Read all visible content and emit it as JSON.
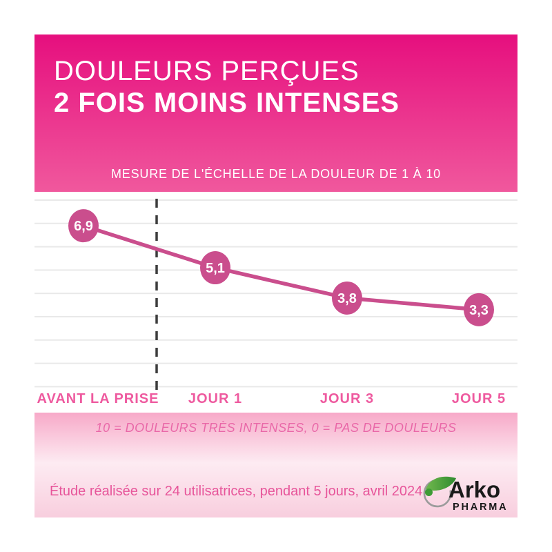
{
  "header": {
    "title_line1": "DOULEURS PERÇUES",
    "title_line2": "2 FOIS MOINS INTENSES",
    "subtitle": "MESURE DE L'ÉCHELLE DE LA DOULEUR DE 1 À 10"
  },
  "chart_data": {
    "type": "line",
    "title": "Mesure de l'échelle de la douleur de 1 à 10",
    "categories": [
      "AVANT LA PRISE",
      "JOUR 1",
      "JOUR 3",
      "JOUR 5"
    ],
    "values": [
      6.9,
      5.1,
      3.8,
      3.3
    ],
    "value_labels": [
      "6,9",
      "5,1",
      "3,8",
      "3,3"
    ],
    "ylim": [
      0,
      8
    ],
    "gridlines": "horizontal, one per pain-scale unit, no tick labels",
    "separator": "dashed vertical line between AVANT LA PRISE and JOUR 1",
    "legend": "none"
  },
  "footnotes": {
    "scale_note": "10 = DOULEURS TRÈS INTENSES, 0 = PAS DE DOULEURS",
    "study_note": "Étude réalisée sur 24 utilisatrices, pendant 5 jours, avril 2024."
  },
  "logo": {
    "brand": "Arko",
    "sub": "PHARMA"
  },
  "colors": {
    "header_gradient_top": "#e60f7e",
    "header_gradient_bottom": "#f0589d",
    "line": "#ca4e8d",
    "point": "#ca4e8d",
    "point_value_text": "#ffffff",
    "axis_label": "#ee5a9f",
    "gridline": "#e9e9e9",
    "dashed_line": "#3c3c3c",
    "bottom_gradient_top": "#f7a9c8",
    "bottom_gradient_mid": "#fdebf2",
    "bottom_gradient_bottom": "#f8cede",
    "logo_green": "#3d9b35",
    "logo_green_light": "#71b84e",
    "logo_circle_gray": "#9b9b9b",
    "logo_text": "#1a1a1a"
  }
}
